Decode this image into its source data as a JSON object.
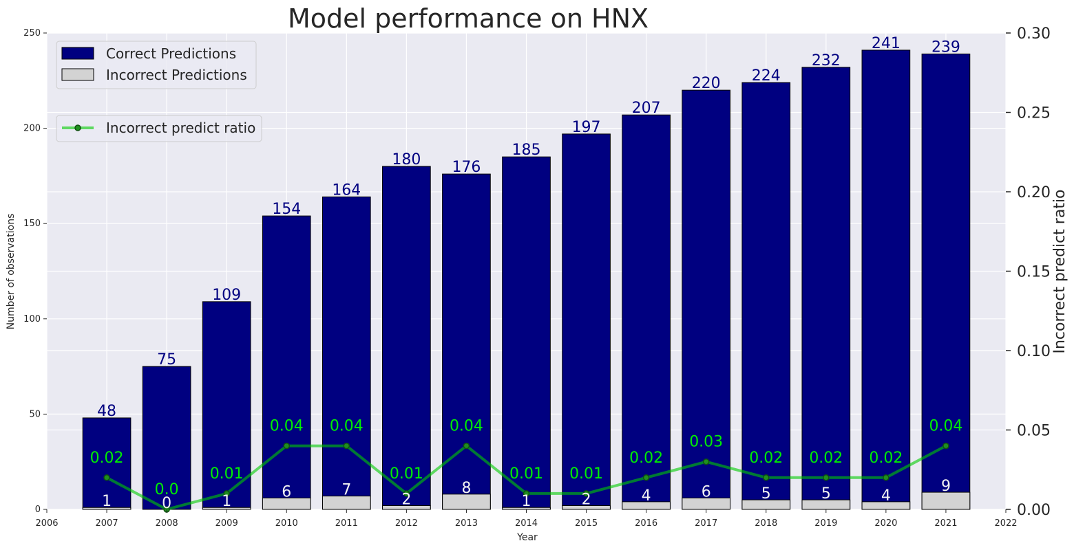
{
  "chart_data": {
    "type": "bar",
    "title": "Model performance on HNX",
    "xlabel": "Year",
    "ylabel": "Number of observations",
    "y2label": "Incorrect predict ratio",
    "x": [
      2007,
      2008,
      2009,
      2010,
      2011,
      2012,
      2013,
      2014,
      2015,
      2016,
      2017,
      2018,
      2019,
      2020,
      2021
    ],
    "xlim": [
      2006,
      2022
    ],
    "xticks": [
      "2006",
      "2007",
      "2008",
      "2009",
      "2010",
      "2011",
      "2012",
      "2013",
      "2014",
      "2015",
      "2016",
      "2017",
      "2018",
      "2019",
      "2020",
      "2021",
      "2022"
    ],
    "ylim": [
      0,
      250
    ],
    "yticks": [
      "0",
      "50",
      "100",
      "150",
      "200",
      "250"
    ],
    "y2lim": [
      0,
      0.3
    ],
    "y2ticks": [
      "0.00",
      "0.05",
      "0.10",
      "0.15",
      "0.20",
      "0.25",
      "0.30"
    ],
    "grid": true,
    "series": [
      {
        "name": "Correct Predictions",
        "kind": "bar",
        "color": "#000080",
        "label_color": "#000080",
        "values": [
          48,
          75,
          109,
          154,
          164,
          180,
          176,
          185,
          197,
          207,
          220,
          224,
          232,
          241,
          239
        ],
        "labels": [
          "48",
          "75",
          "109",
          "154",
          "164",
          "180",
          "176",
          "185",
          "197",
          "207",
          "220",
          "224",
          "232",
          "241",
          "239"
        ]
      },
      {
        "name": "Incorrect Predictions",
        "kind": "bar",
        "color": "#d3d3d3",
        "label_color": "#f2f2f2",
        "values": [
          1,
          0,
          1,
          6,
          7,
          2,
          8,
          1,
          2,
          4,
          6,
          5,
          5,
          4,
          9
        ],
        "labels": [
          "1",
          "0",
          "1",
          "6",
          "7",
          "2",
          "8",
          "1",
          "2",
          "4",
          "6",
          "5",
          "5",
          "4",
          "9"
        ]
      },
      {
        "name": "Incorrect predict ratio",
        "kind": "line",
        "axis": "right",
        "color": "#00cc00",
        "label_color": "#00ee00",
        "values": [
          0.02,
          0.0,
          0.01,
          0.04,
          0.04,
          0.01,
          0.04,
          0.01,
          0.01,
          0.02,
          0.03,
          0.02,
          0.02,
          0.02,
          0.04
        ],
        "labels": [
          "0.02",
          "0.0",
          "0.01",
          "0.04",
          "0.04",
          "0.01",
          "0.04",
          "0.01",
          "0.01",
          "0.02",
          "0.03",
          "0.02",
          "0.02",
          "0.02",
          "0.04"
        ]
      }
    ],
    "legend": {
      "placement": "top-left",
      "bar_entries": [
        "Correct Predictions",
        "Incorrect Predictions"
      ],
      "line_entries": [
        "Incorrect predict ratio"
      ]
    }
  }
}
